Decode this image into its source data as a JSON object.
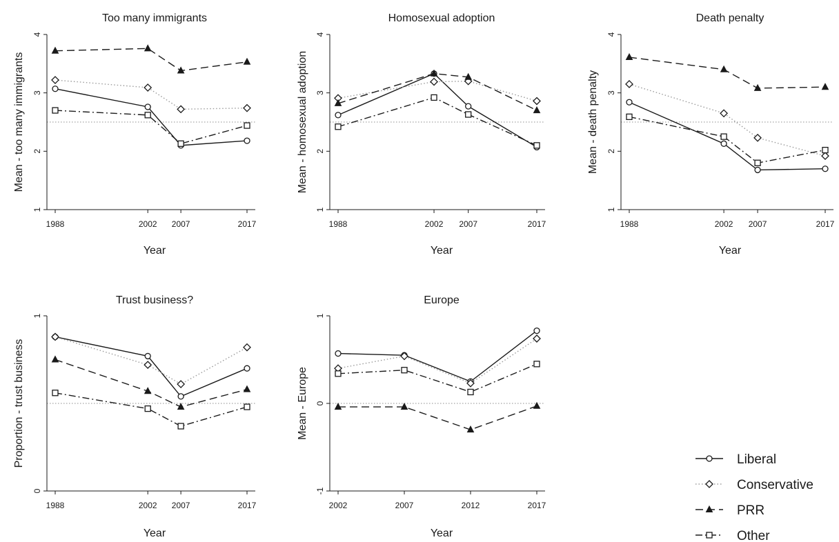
{
  "legend": {
    "items": [
      {
        "key": "liberal",
        "label": "Liberal"
      },
      {
        "key": "conservative",
        "label": "Conservative"
      },
      {
        "key": "prr",
        "label": "PRR"
      },
      {
        "key": "other",
        "label": "Other"
      }
    ]
  },
  "chart_data": [
    {
      "type": "line",
      "title": "Too many immigrants",
      "xlabel": "Year",
      "ylabel": "Mean - too many immigrants",
      "x": [
        1988,
        2002,
        2007,
        2017
      ],
      "x_ticks": [
        "1988",
        "2002",
        "2007",
        "2017"
      ],
      "ylim": [
        1,
        4
      ],
      "y_ticks": [
        "1",
        "2",
        "3",
        "4"
      ],
      "reference_line": 2.5,
      "series": [
        {
          "key": "liberal",
          "name": "Liberal",
          "values": [
            3.07,
            2.76,
            2.1,
            2.18
          ]
        },
        {
          "key": "conservative",
          "name": "Conservative",
          "values": [
            3.22,
            3.09,
            2.72,
            2.74
          ]
        },
        {
          "key": "prr",
          "name": "PRR",
          "values": [
            3.72,
            3.76,
            3.38,
            3.53
          ]
        },
        {
          "key": "other",
          "name": "Other",
          "values": [
            2.7,
            2.62,
            2.13,
            2.44
          ]
        }
      ]
    },
    {
      "type": "line",
      "title": "Homosexual adoption",
      "xlabel": "Year",
      "ylabel": "Mean - homosexual adoption",
      "x": [
        1988,
        2002,
        2007,
        2017
      ],
      "x_ticks": [
        "1988",
        "2002",
        "2007",
        "2017"
      ],
      "ylim": [
        1,
        4
      ],
      "y_ticks": [
        "1",
        "2",
        "3",
        "4"
      ],
      "reference_line": 2.5,
      "series": [
        {
          "key": "liberal",
          "name": "Liberal",
          "values": [
            2.62,
            3.33,
            2.77,
            2.07
          ]
        },
        {
          "key": "conservative",
          "name": "Conservative",
          "values": [
            2.91,
            3.19,
            3.2,
            2.86
          ]
        },
        {
          "key": "prr",
          "name": "PRR",
          "values": [
            2.82,
            3.33,
            3.27,
            2.7
          ]
        },
        {
          "key": "other",
          "name": "Other",
          "values": [
            2.42,
            2.92,
            2.63,
            2.1
          ]
        }
      ]
    },
    {
      "type": "line",
      "title": "Death penalty",
      "xlabel": "Year",
      "ylabel": "Mean - death penalty",
      "x": [
        1988,
        2002,
        2007,
        2017
      ],
      "x_ticks": [
        "1988",
        "2002",
        "2007",
        "2017"
      ],
      "ylim": [
        1,
        4
      ],
      "y_ticks": [
        "1",
        "2",
        "3",
        "4"
      ],
      "reference_line": 2.5,
      "series": [
        {
          "key": "liberal",
          "name": "Liberal",
          "values": [
            2.84,
            2.13,
            1.68,
            1.7
          ]
        },
        {
          "key": "conservative",
          "name": "Conservative",
          "values": [
            3.15,
            2.65,
            2.23,
            1.92
          ]
        },
        {
          "key": "prr",
          "name": "PRR",
          "values": [
            3.61,
            3.4,
            3.08,
            3.1
          ]
        },
        {
          "key": "other",
          "name": "Other",
          "values": [
            2.59,
            2.25,
            1.8,
            2.02
          ]
        }
      ]
    },
    {
      "type": "line",
      "title": "Trust business?",
      "xlabel": "Year",
      "ylabel": "Proportion - trust business",
      "x": [
        1988,
        2002,
        2007,
        2017
      ],
      "x_ticks": [
        "1988",
        "2002",
        "2007",
        "2017"
      ],
      "ylim": [
        0,
        1
      ],
      "y_ticks": [
        "0",
        "1"
      ],
      "reference_line": 0.5,
      "series": [
        {
          "key": "liberal",
          "name": "Liberal",
          "values": [
            0.88,
            0.77,
            0.54,
            0.7
          ]
        },
        {
          "key": "conservative",
          "name": "Conservative",
          "values": [
            0.88,
            0.72,
            0.61,
            0.82
          ]
        },
        {
          "key": "prr",
          "name": "PRR",
          "values": [
            0.75,
            0.57,
            0.48,
            0.58
          ]
        },
        {
          "key": "other",
          "name": "Other",
          "values": [
            0.56,
            0.47,
            0.37,
            0.48
          ]
        }
      ]
    },
    {
      "type": "line",
      "title": "Europe",
      "xlabel": "Year",
      "ylabel": "Mean - Europe",
      "x": [
        2002,
        2007,
        2012,
        2017
      ],
      "x_ticks": [
        "2002",
        "2007",
        "2012",
        "2017"
      ],
      "ylim": [
        -1,
        1
      ],
      "y_ticks": [
        "-1",
        "0",
        "1"
      ],
      "reference_line": 0,
      "series": [
        {
          "key": "liberal",
          "name": "Liberal",
          "values": [
            0.57,
            0.55,
            0.25,
            0.83
          ]
        },
        {
          "key": "conservative",
          "name": "Conservative",
          "values": [
            0.4,
            0.54,
            0.23,
            0.74
          ]
        },
        {
          "key": "prr",
          "name": "PRR",
          "values": [
            -0.04,
            -0.04,
            -0.3,
            -0.03
          ]
        },
        {
          "key": "other",
          "name": "Other",
          "values": [
            0.34,
            0.38,
            0.13,
            0.45
          ]
        }
      ]
    }
  ]
}
